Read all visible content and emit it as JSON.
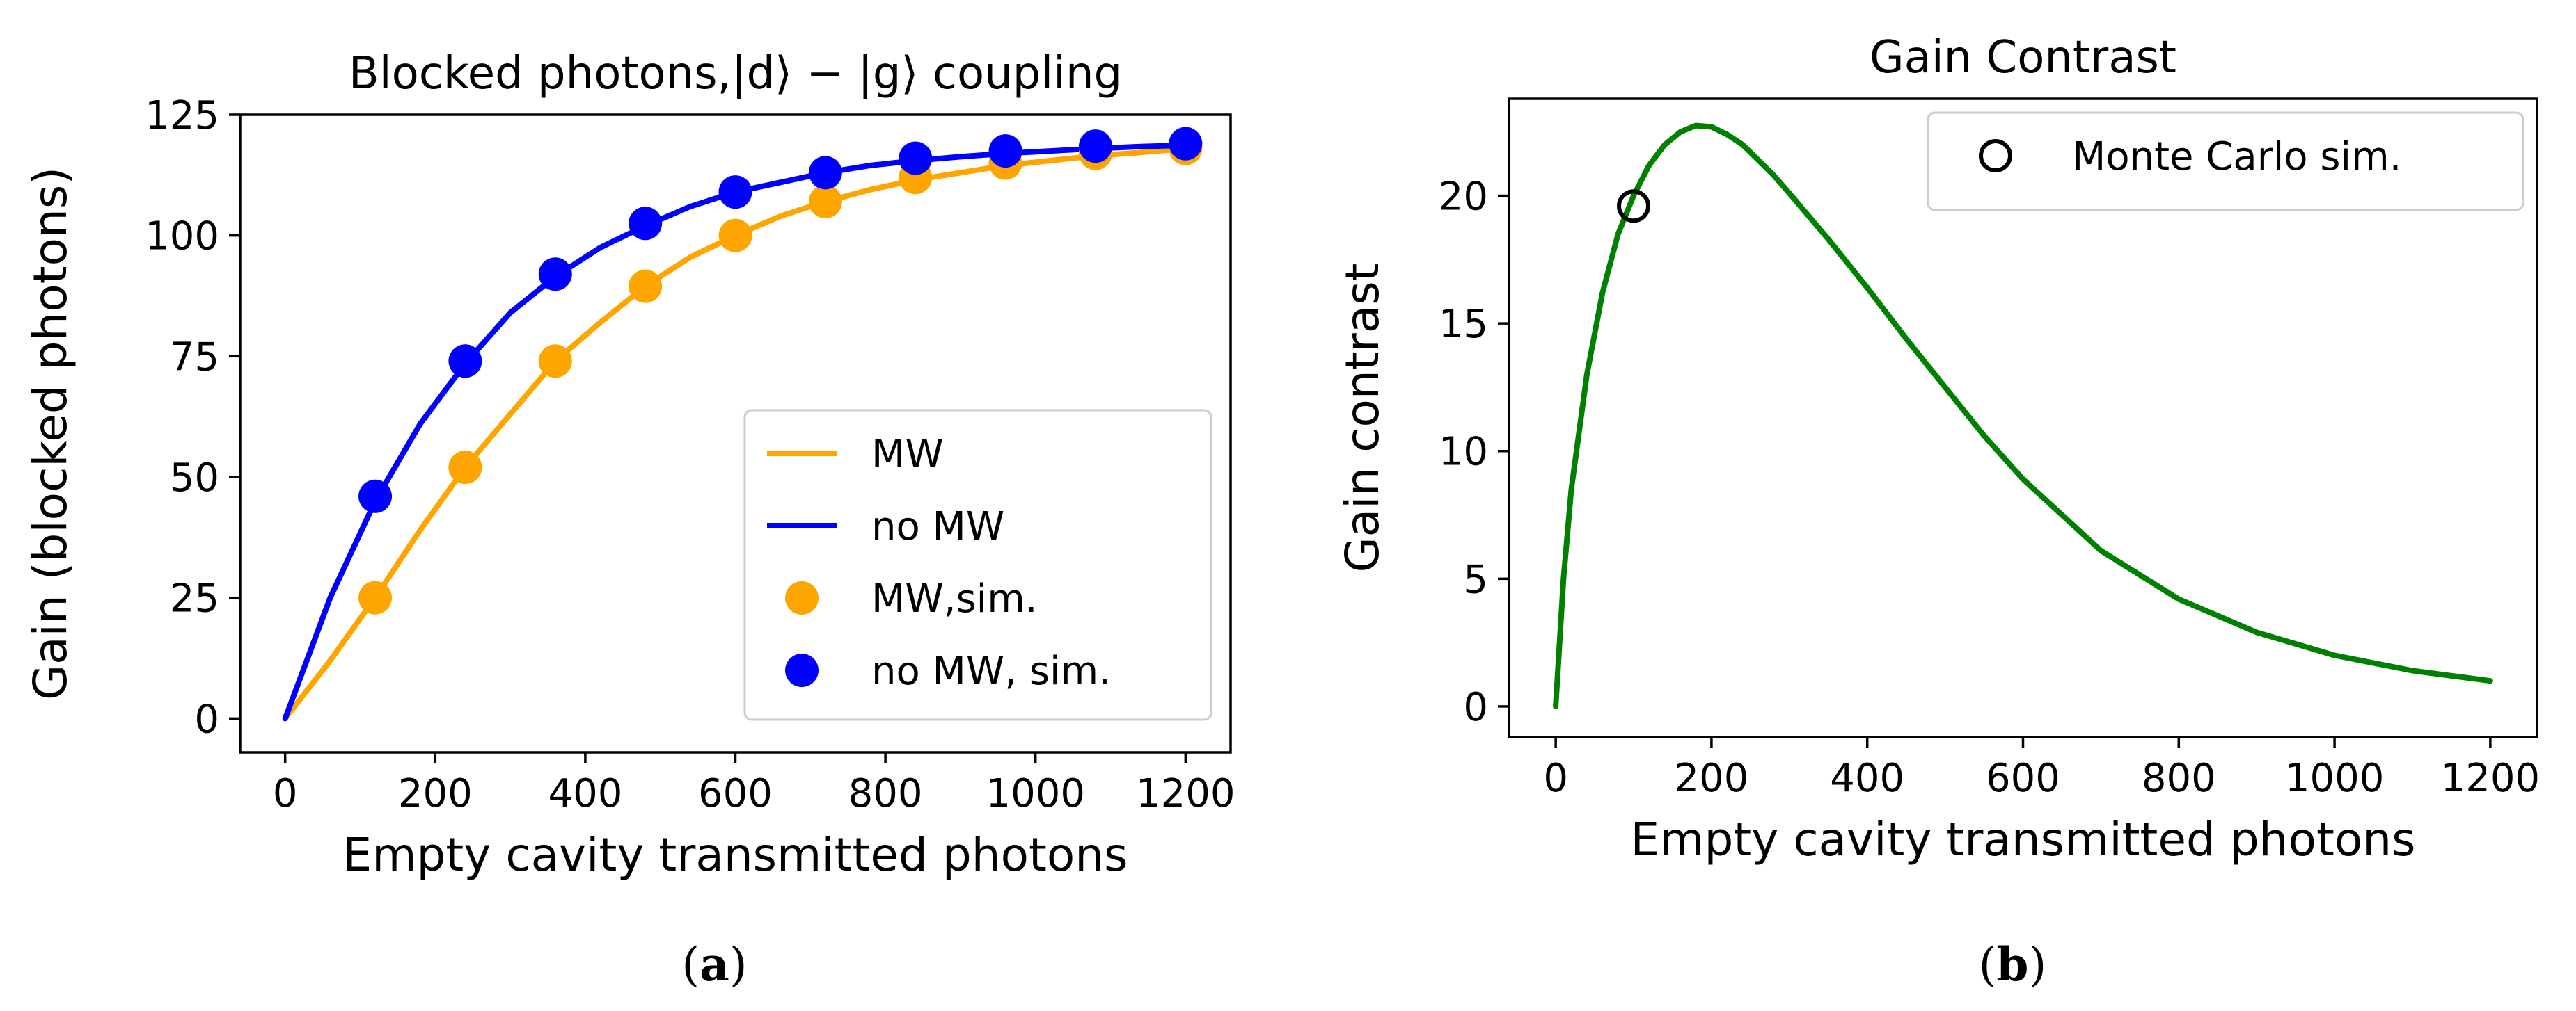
{
  "chart_data": [
    {
      "type": "line",
      "title": "Blocked photons,|d⟩ − |g⟩ coupling",
      "xlabel": "Empty cavity transmitted photons",
      "ylabel": "Gain (blocked photons)",
      "xlim": [
        -60,
        1260
      ],
      "ylim": [
        -7,
        125
      ],
      "xticks": [
        0,
        200,
        400,
        600,
        800,
        1000,
        1200
      ],
      "yticks": [
        0,
        25,
        50,
        75,
        100,
        125
      ],
      "grid": false,
      "legend_position": "lower-right",
      "series": [
        {
          "name": "MW",
          "kind": "line",
          "color": "#FFA500",
          "x": [
            0,
            60,
            120,
            180,
            240,
            300,
            360,
            420,
            480,
            540,
            600,
            660,
            720,
            780,
            840,
            900,
            960,
            1020,
            1080,
            1140,
            1200
          ],
          "y": [
            0,
            12,
            25,
            39,
            52,
            63,
            74,
            82,
            89.5,
            95.5,
            100,
            104,
            107,
            109.5,
            111.5,
            113,
            114.5,
            115.5,
            116.5,
            117.2,
            118
          ]
        },
        {
          "name": "no MW",
          "kind": "line",
          "color": "#0000FF",
          "x": [
            0,
            60,
            120,
            180,
            240,
            300,
            360,
            420,
            480,
            540,
            600,
            660,
            720,
            780,
            840,
            900,
            960,
            1020,
            1080,
            1140,
            1200
          ],
          "y": [
            0,
            25,
            45,
            61,
            73.5,
            84,
            91.5,
            97.5,
            102,
            106,
            109,
            111,
            113,
            114.5,
            115.5,
            116.3,
            117,
            117.5,
            118,
            118.4,
            118.7
          ]
        },
        {
          "name": "MW,sim.",
          "kind": "scatter",
          "color": "#FFA500",
          "x": [
            120,
            240,
            360,
            480,
            600,
            720,
            840,
            960,
            1080,
            1200
          ],
          "y": [
            25,
            52,
            74,
            89.5,
            100,
            107,
            112,
            115,
            117,
            118
          ]
        },
        {
          "name": "no MW, sim.",
          "kind": "scatter",
          "color": "#0000FF",
          "x": [
            120,
            240,
            360,
            480,
            600,
            720,
            840,
            960,
            1080,
            1200
          ],
          "y": [
            46,
            74,
            92,
            102.5,
            109,
            113,
            116,
            117.5,
            118.5,
            119
          ]
        }
      ],
      "panel_label": "(a)"
    },
    {
      "type": "line",
      "title": "Gain Contrast",
      "xlabel": "Empty cavity transmitted photons",
      "ylabel": "Gain contrast",
      "xlim": [
        -60,
        1260
      ],
      "ylim": [
        -1.2,
        23.8
      ],
      "xticks": [
        0,
        200,
        400,
        600,
        800,
        1000,
        1200
      ],
      "yticks": [
        0,
        5,
        10,
        15,
        20
      ],
      "grid": false,
      "legend_position": "top-right",
      "series": [
        {
          "kind": "line",
          "color": "#008000",
          "x": [
            0,
            10,
            20,
            40,
            60,
            80,
            100,
            120,
            140,
            160,
            180,
            200,
            220,
            240,
            260,
            280,
            300,
            350,
            400,
            450,
            500,
            550,
            600,
            700,
            800,
            900,
            1000,
            1100,
            1200
          ],
          "y": [
            0,
            5,
            8.5,
            13,
            16.2,
            18.5,
            20,
            21.2,
            22,
            22.5,
            22.75,
            22.7,
            22.4,
            22,
            21.4,
            20.8,
            20.1,
            18.3,
            16.4,
            14.4,
            12.5,
            10.6,
            8.9,
            6.1,
            4.2,
            2.9,
            2.0,
            1.4,
            1.0
          ]
        },
        {
          "name": "Monte Carlo sim.",
          "kind": "scatter",
          "marker": "open-circle",
          "color": "#000000",
          "x": [
            100
          ],
          "y": [
            19.6
          ]
        }
      ],
      "panel_label": "(b)"
    }
  ]
}
